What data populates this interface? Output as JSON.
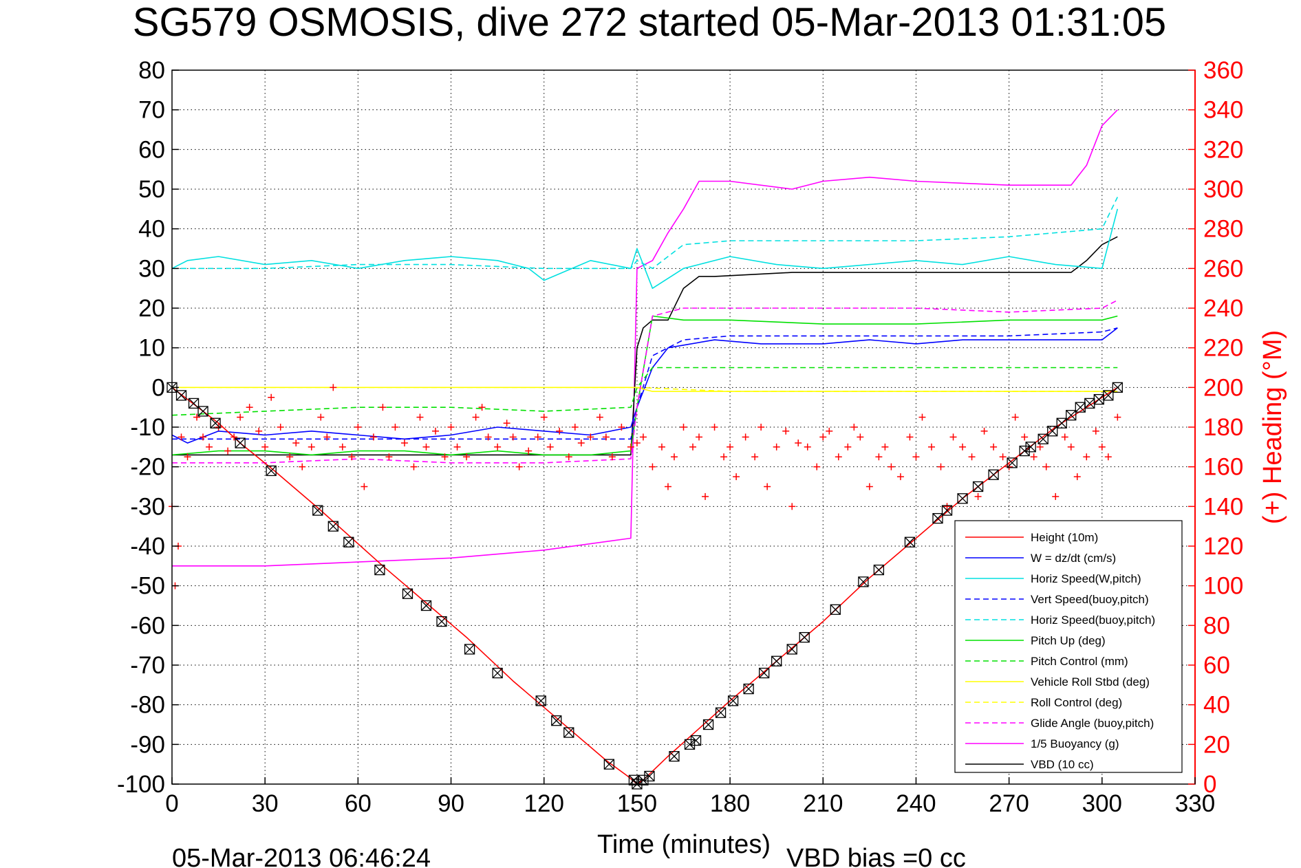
{
  "chart_data": {
    "type": "line",
    "title": "SG579 OSMOSIS, dive 272 started 05-Mar-2013 01:31:05",
    "xlabel": "Time (minutes)",
    "ylabel_right": "(+) Heading (°M)",
    "xlim": [
      0,
      330
    ],
    "ylim": [
      -100,
      80
    ],
    "ylim_right": [
      0,
      360
    ],
    "x_ticks": [
      0,
      30,
      60,
      90,
      120,
      150,
      180,
      210,
      240,
      270,
      300,
      330
    ],
    "y_ticks": [
      -100,
      -90,
      -80,
      -70,
      -60,
      -50,
      -40,
      -30,
      -20,
      -10,
      0,
      10,
      20,
      30,
      40,
      50,
      60,
      70,
      80
    ],
    "y_ticks_right": [
      0,
      20,
      40,
      60,
      80,
      100,
      120,
      140,
      160,
      180,
      200,
      220,
      240,
      260,
      280,
      300,
      320,
      340,
      360
    ],
    "grid": true,
    "legend_position": "bottom-right",
    "footer_date": "05-Mar-2013 06:46:24",
    "footer_vbd": "VBD bias =0 cc",
    "series": [
      {
        "name": "Height (10m)",
        "color": "#ff0000",
        "style": "solid",
        "x": [
          0,
          5,
          10,
          15,
          22,
          33,
          48,
          58,
          68,
          80,
          95,
          110,
          125,
          140,
          147,
          150,
          152,
          160,
          170,
          180,
          195,
          210,
          225,
          240,
          255,
          265,
          275,
          285,
          295,
          305
        ],
        "y": [
          0,
          -3,
          -6,
          -9,
          -14,
          -21,
          -31,
          -38,
          -45,
          -53,
          -63,
          -74,
          -84,
          -94,
          -98,
          -100,
          -99,
          -93,
          -86,
          -79,
          -69,
          -59,
          -48,
          -38,
          -28,
          -22,
          -16,
          -10,
          -5,
          0
        ]
      },
      {
        "name": "W = dz/dt (cm/s)",
        "color": "#0000ff",
        "style": "solid",
        "x": [
          0,
          5,
          15,
          30,
          45,
          60,
          75,
          90,
          105,
          120,
          135,
          148,
          150,
          155,
          160,
          175,
          190,
          210,
          225,
          240,
          255,
          270,
          285,
          300,
          305
        ],
        "y": [
          -12,
          -14,
          -11,
          -12,
          -11,
          -12,
          -13,
          -12,
          -10,
          -11,
          -12,
          -10,
          -5,
          5,
          10,
          12,
          11,
          11,
          12,
          11,
          12,
          12,
          12,
          12,
          15
        ]
      },
      {
        "name": "Horiz Speed(W,pitch)",
        "color": "#00e0e0",
        "style": "solid",
        "x": [
          0,
          5,
          15,
          30,
          45,
          60,
          75,
          90,
          105,
          115,
          120,
          135,
          148,
          150,
          155,
          165,
          180,
          195,
          210,
          225,
          240,
          255,
          270,
          285,
          300,
          305
        ],
        "y": [
          30,
          32,
          33,
          31,
          32,
          30,
          32,
          33,
          32,
          30,
          27,
          32,
          30,
          35,
          25,
          30,
          33,
          31,
          30,
          31,
          32,
          31,
          33,
          31,
          30,
          45
        ]
      },
      {
        "name": "Vert Speed(buoy,pitch)",
        "color": "#0000ff",
        "style": "dashed",
        "x": [
          0,
          30,
          60,
          90,
          120,
          148,
          150,
          155,
          165,
          180,
          210,
          240,
          270,
          300,
          305
        ],
        "y": [
          -13,
          -13,
          -13,
          -13,
          -13,
          -13,
          -5,
          8,
          12,
          13,
          13,
          13,
          13,
          14,
          15
        ]
      },
      {
        "name": "Horiz Speed(buoy,pitch)",
        "color": "#00e0e0",
        "style": "dashed",
        "x": [
          0,
          30,
          60,
          90,
          120,
          148,
          150,
          155,
          165,
          180,
          210,
          240,
          270,
          300,
          305
        ],
        "y": [
          30,
          30,
          31,
          31,
          30,
          30,
          32,
          30,
          36,
          37,
          37,
          37,
          38,
          40,
          48
        ]
      },
      {
        "name": "Pitch Up (deg)",
        "color": "#00e000",
        "style": "solid",
        "x": [
          0,
          15,
          30,
          45,
          60,
          75,
          90,
          105,
          120,
          135,
          148,
          150,
          155,
          165,
          180,
          210,
          240,
          270,
          300,
          305
        ],
        "y": [
          -17,
          -16,
          -16,
          -17,
          -16,
          -16,
          -17,
          -16,
          -17,
          -17,
          -16,
          -5,
          18,
          17,
          17,
          16,
          16,
          17,
          17,
          18
        ]
      },
      {
        "name": "Pitch Control (mm)",
        "color": "#00e000",
        "style": "dashed",
        "x": [
          0,
          30,
          60,
          90,
          120,
          148,
          150,
          155,
          165,
          180,
          210,
          240,
          270,
          300,
          305
        ],
        "y": [
          -7,
          -6,
          -5,
          -5,
          -6,
          -5,
          0,
          5,
          5,
          5,
          5,
          5,
          5,
          5,
          5
        ]
      },
      {
        "name": "Vehicle Roll Stbd (deg)",
        "color": "#ffff00",
        "style": "solid",
        "x": [
          0,
          15,
          30,
          45,
          60,
          75,
          90,
          105,
          120,
          135,
          148,
          150,
          155,
          180,
          210,
          240,
          270,
          300,
          305
        ],
        "y": [
          0,
          0,
          0,
          0,
          0,
          0,
          0,
          0,
          0,
          0,
          0,
          0,
          -1,
          -1,
          -1,
          -1,
          -1,
          -1,
          -1
        ]
      },
      {
        "name": "Roll Control (deg)",
        "color": "#ffff00",
        "style": "dashed",
        "x": [
          0,
          60,
          120,
          148,
          150,
          180,
          240,
          305
        ],
        "y": [
          0,
          0,
          0,
          0,
          0,
          -1,
          -1,
          -1
        ]
      },
      {
        "name": "Glide Angle (buoy,pitch)",
        "color": "#ff00ff",
        "style": "dashed",
        "x": [
          0,
          30,
          60,
          90,
          120,
          148,
          150,
          155,
          165,
          180,
          210,
          240,
          270,
          300,
          305
        ],
        "y": [
          -19,
          -19,
          -18,
          -19,
          -19,
          -18,
          -5,
          18,
          20,
          20,
          20,
          20,
          19,
          20,
          22
        ]
      },
      {
        "name": "1/5 Buoyancy (g)",
        "color": "#ff00ff",
        "style": "solid",
        "x": [
          0,
          3,
          30,
          60,
          90,
          120,
          148,
          150,
          155,
          160,
          165,
          170,
          180,
          200,
          210,
          225,
          240,
          270,
          290,
          295,
          300,
          305
        ],
        "y": [
          -45,
          -45,
          -45,
          -44,
          -43,
          -41,
          -38,
          30,
          32,
          39,
          45,
          52,
          52,
          50,
          52,
          53,
          52,
          51,
          51,
          56,
          66,
          70
        ]
      },
      {
        "name": "VBD (10 cc)",
        "color": "#000000",
        "style": "solid",
        "x": [
          0,
          3,
          30,
          60,
          90,
          120,
          148,
          150,
          152,
          155,
          160,
          165,
          170,
          175,
          200,
          210,
          220,
          230,
          250,
          280,
          290,
          295,
          300,
          305
        ],
        "y": [
          -17,
          -17,
          -17,
          -17,
          -17,
          -17,
          -17,
          10,
          15,
          17,
          17,
          25,
          28,
          28,
          29,
          29,
          29,
          29,
          29,
          29,
          29,
          32,
          36,
          38
        ]
      }
    ],
    "heading": {
      "name": "(+) Heading (°M)",
      "color": "#ff0000",
      "axis": "right",
      "x": [
        0,
        1,
        2,
        3,
        5,
        8,
        10,
        12,
        15,
        18,
        20,
        22,
        25,
        28,
        30,
        32,
        35,
        38,
        40,
        42,
        45,
        48,
        50,
        52,
        55,
        58,
        60,
        62,
        65,
        68,
        70,
        72,
        75,
        78,
        80,
        82,
        85,
        88,
        90,
        92,
        95,
        98,
        100,
        102,
        105,
        108,
        110,
        112,
        115,
        118,
        120,
        122,
        125,
        128,
        130,
        132,
        135,
        138,
        140,
        142,
        145,
        148,
        150,
        152,
        155,
        158,
        160,
        162,
        165,
        168,
        170,
        172,
        175,
        178,
        180,
        182,
        185,
        188,
        190,
        192,
        195,
        198,
        200,
        202,
        205,
        208,
        210,
        212,
        215,
        218,
        220,
        222,
        225,
        228,
        230,
        232,
        235,
        238,
        240,
        242,
        245,
        248,
        250,
        252,
        255,
        258,
        260,
        262,
        265,
        268,
        270,
        272,
        275,
        278,
        280,
        282,
        285,
        288,
        290,
        292,
        295,
        298,
        300,
        302,
        305
      ],
      "y": [
        140,
        100,
        120,
        175,
        165,
        185,
        175,
        170,
        180,
        168,
        175,
        185,
        190,
        178,
        170,
        195,
        180,
        165,
        172,
        160,
        170,
        185,
        175,
        200,
        170,
        165,
        180,
        150,
        175,
        190,
        165,
        180,
        172,
        160,
        185,
        170,
        178,
        165,
        180,
        170,
        165,
        185,
        190,
        175,
        170,
        182,
        175,
        160,
        168,
        175,
        185,
        170,
        178,
        165,
        180,
        172,
        175,
        185,
        175,
        165,
        180,
        170,
        172,
        175,
        160,
        170,
        150,
        165,
        180,
        170,
        175,
        145,
        180,
        165,
        170,
        155,
        175,
        165,
        180,
        150,
        170,
        178,
        140,
        172,
        170,
        160,
        175,
        178,
        165,
        170,
        180,
        175,
        150,
        165,
        170,
        160,
        155,
        175,
        165,
        185,
        170,
        160,
        140,
        175,
        170,
        165,
        145,
        178,
        170,
        165,
        160,
        185,
        175,
        165,
        170,
        160,
        145,
        175,
        170,
        155,
        165,
        178,
        170,
        165,
        185
      ]
    },
    "markers": {
      "name": "Height markers",
      "color": "#000000",
      "x": [
        0,
        3,
        7,
        10,
        14,
        22,
        32,
        47,
        52,
        57,
        67,
        76,
        82,
        87,
        96,
        105,
        119,
        124,
        128,
        141,
        149,
        150,
        152,
        154,
        162,
        167,
        169,
        173,
        177,
        181,
        186,
        191,
        195,
        200,
        204,
        214,
        223,
        228,
        238,
        247,
        250,
        255,
        260,
        265,
        271,
        275,
        277,
        281,
        284,
        287,
        290,
        293,
        296,
        299,
        302,
        305
      ],
      "y": [
        0,
        -2,
        -4,
        -6,
        -9,
        -14,
        -21,
        -31,
        -35,
        -39,
        -46,
        -52,
        -55,
        -59,
        -66,
        -72,
        -79,
        -84,
        -87,
        -95,
        -99,
        -100,
        -99,
        -98,
        -93,
        -90,
        -89,
        -85,
        -82,
        -79,
        -76,
        -72,
        -69,
        -66,
        -63,
        -56,
        -49,
        -46,
        -39,
        -33,
        -31,
        -28,
        -25,
        -22,
        -19,
        -16,
        -15,
        -13,
        -11,
        -9,
        -7,
        -5,
        -4,
        -3,
        -2,
        0
      ]
    }
  }
}
